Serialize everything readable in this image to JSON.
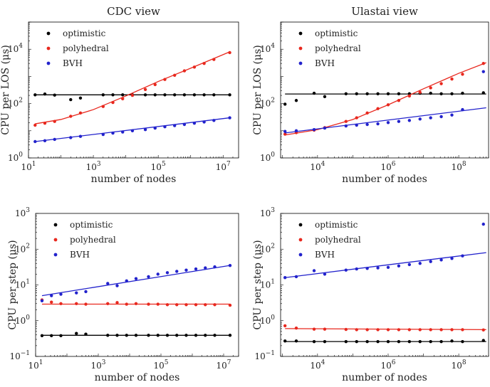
{
  "colors": {
    "optimistic": "#000000",
    "polyhedral": "#e8281e",
    "BVH": "#2222cc"
  },
  "chart_data": [
    {
      "type": "scatter",
      "title": "CDC view",
      "xlabel": "number of nodes",
      "ylabel": "CPU per LOS (μs)",
      "xscale": "log",
      "yscale": "log",
      "xlim": [
        10,
        30000000
      ],
      "ylim": [
        1,
        100000
      ],
      "xticks": [
        {
          "v": 10,
          "b": "10",
          "e": "1"
        },
        {
          "v": 1000,
          "b": "10",
          "e": "3"
        },
        {
          "v": 100000,
          "b": "10",
          "e": "5"
        },
        {
          "v": 10000000,
          "b": "10",
          "e": "7"
        }
      ],
      "yticks": [
        {
          "v": 1,
          "b": "10",
          "e": "0"
        },
        {
          "v": 100,
          "b": "10",
          "e": "2"
        },
        {
          "v": 10000,
          "b": "10",
          "e": "4"
        }
      ],
      "legend": "top-left",
      "series": [
        {
          "name": "optimistic",
          "color_key": "optimistic",
          "x": [
            16,
            32,
            64,
            200,
            400,
            2000,
            4000,
            8000,
            16000,
            40000,
            80000,
            160000,
            320000,
            640000,
            1300000,
            2600000,
            5200000,
            16000000
          ],
          "y": [
            210,
            225,
            205,
            140,
            160,
            210,
            210,
            210,
            210,
            210,
            210,
            210,
            210,
            210,
            210,
            210,
            210,
            210
          ],
          "fit": [
            [
              16,
              210
            ],
            [
              16000000,
              210
            ]
          ]
        },
        {
          "name": "polyhedral",
          "color_key": "polyhedral",
          "x": [
            16,
            32,
            64,
            200,
            400,
            2000,
            4000,
            8000,
            16000,
            40000,
            80000,
            160000,
            320000,
            640000,
            1300000,
            2600000,
            5200000,
            16000000
          ],
          "y": [
            16,
            19,
            22,
            34,
            45,
            78,
            110,
            150,
            200,
            330,
            500,
            770,
            1100,
            1600,
            2200,
            3000,
            4200,
            7500
          ],
          "fit": [
            [
              16,
              18
            ],
            [
              100,
              26
            ],
            [
              1000,
              60
            ],
            [
              10000,
              190
            ],
            [
              100000,
              650
            ],
            [
              1000000,
              2000
            ],
            [
              16000000,
              8000
            ]
          ]
        },
        {
          "name": "BVH",
          "color_key": "BVH",
          "x": [
            16,
            32,
            64,
            200,
            400,
            2000,
            4000,
            8000,
            16000,
            40000,
            80000,
            160000,
            320000,
            640000,
            1300000,
            2600000,
            5200000,
            16000000
          ],
          "y": [
            4,
            4.3,
            4.8,
            5.6,
            6.2,
            7.3,
            8.2,
            9,
            10,
            11,
            12.5,
            14,
            15.5,
            17,
            19,
            21,
            24,
            30
          ],
          "fit": [
            [
              16,
              4
            ],
            [
              16000000,
              30
            ]
          ]
        }
      ]
    },
    {
      "type": "scatter",
      "title": "Ulastai view",
      "xlabel": "number of nodes",
      "ylabel": "CPU per LOS (μs)",
      "xscale": "log",
      "yscale": "log",
      "xlim": [
        900,
        700000000
      ],
      "ylim": [
        1,
        100000
      ],
      "xticks": [
        {
          "v": 10000,
          "b": "10",
          "e": "4"
        },
        {
          "v": 1000000,
          "b": "10",
          "e": "6"
        },
        {
          "v": 100000000,
          "b": "10",
          "e": "8"
        }
      ],
      "yticks": [
        {
          "v": 1,
          "b": "10",
          "e": "0"
        },
        {
          "v": 100,
          "b": "10",
          "e": "2"
        },
        {
          "v": 10000,
          "b": "10",
          "e": "4"
        }
      ],
      "legend": "top-left",
      "series": [
        {
          "name": "optimistic",
          "color_key": "optimistic",
          "x": [
            1200,
            2500,
            8000,
            16000,
            64000,
            128000,
            256000,
            512000,
            1000000,
            2000000,
            4000000,
            8000000,
            16000000,
            32000000,
            64000000,
            128000000,
            500000000
          ],
          "y": [
            95,
            130,
            240,
            180,
            230,
            230,
            230,
            230,
            230,
            230,
            230,
            240,
            240,
            230,
            230,
            240,
            250
          ],
          "fit": [
            [
              1200,
              225
            ],
            [
              600000000,
              225
            ]
          ]
        },
        {
          "name": "polyhedral",
          "color_key": "polyhedral",
          "x": [
            1200,
            2500,
            8000,
            16000,
            64000,
            128000,
            256000,
            512000,
            1000000,
            2000000,
            4000000,
            8000000,
            16000000,
            32000000,
            64000000,
            128000000,
            500000000
          ],
          "y": [
            7.5,
            8.5,
            10.5,
            13,
            22,
            30,
            45,
            65,
            90,
            130,
            190,
            260,
            380,
            540,
            800,
            1200,
            3000
          ],
          "fit": [
            [
              1200,
              7
            ],
            [
              10000,
              11
            ],
            [
              100000,
              26
            ],
            [
              1000000,
              90
            ],
            [
              10000000,
              350
            ],
            [
              100000000,
              1300
            ],
            [
              600000000,
              3200
            ]
          ]
        },
        {
          "name": "BVH",
          "color_key": "BVH",
          "x": [
            1200,
            2500,
            8000,
            16000,
            64000,
            128000,
            256000,
            512000,
            1000000,
            2000000,
            4000000,
            8000000,
            16000000,
            32000000,
            64000000,
            128000000,
            500000000
          ],
          "y": [
            9.5,
            10,
            11,
            12.5,
            15,
            16,
            17,
            18,
            20,
            22,
            24,
            27,
            30,
            33,
            38,
            60,
            1500
          ],
          "fit": [
            [
              1200,
              8.3
            ],
            [
              600000000,
              70
            ]
          ]
        }
      ]
    },
    {
      "type": "scatter",
      "title": "",
      "xlabel": "number of nodes",
      "ylabel": "CPU per step (μs)",
      "xscale": "log",
      "yscale": "log",
      "xlim": [
        10,
        30000000
      ],
      "ylim": [
        0.1,
        1000
      ],
      "xticks": [
        {
          "v": 10,
          "b": "10",
          "e": "1"
        },
        {
          "v": 1000,
          "b": "10",
          "e": "3"
        },
        {
          "v": 100000,
          "b": "10",
          "e": "5"
        },
        {
          "v": 10000000,
          "b": "10",
          "e": "7"
        }
      ],
      "yticks": [
        {
          "v": 0.1,
          "b": "10",
          "e": "−1"
        },
        {
          "v": 1,
          "b": "10",
          "e": "0"
        },
        {
          "v": 10,
          "b": "10",
          "e": "1"
        },
        {
          "v": 100,
          "b": "10",
          "e": "2"
        },
        {
          "v": 1000,
          "b": "10",
          "e": "3"
        }
      ],
      "legend": "top-left",
      "series": [
        {
          "name": "optimistic",
          "color_key": "optimistic",
          "x": [
            16,
            32,
            64,
            200,
            400,
            2000,
            4000,
            8000,
            16000,
            40000,
            80000,
            160000,
            320000,
            640000,
            1300000,
            2600000,
            5200000,
            16000000
          ],
          "y": [
            0.38,
            0.38,
            0.38,
            0.44,
            0.42,
            0.39,
            0.39,
            0.39,
            0.39,
            0.39,
            0.39,
            0.39,
            0.39,
            0.39,
            0.39,
            0.39,
            0.39,
            0.39
          ],
          "fit": [
            [
              16,
              0.39
            ],
            [
              16000000,
              0.39
            ]
          ]
        },
        {
          "name": "polyhedral",
          "color_key": "polyhedral",
          "x": [
            16,
            32,
            64,
            200,
            400,
            2000,
            4000,
            8000,
            16000,
            40000,
            80000,
            160000,
            320000,
            640000,
            1300000,
            2600000,
            5200000,
            16000000
          ],
          "y": [
            3.8,
            3.3,
            3.0,
            3.0,
            2.9,
            3.0,
            3.2,
            2.9,
            3.0,
            2.9,
            2.9,
            2.8,
            2.8,
            2.8,
            2.8,
            2.8,
            2.8,
            2.7
          ],
          "fit": [
            [
              16,
              2.9
            ],
            [
              16000000,
              2.9
            ]
          ]
        },
        {
          "name": "BVH",
          "color_key": "BVH",
          "x": [
            16,
            32,
            64,
            200,
            400,
            2000,
            4000,
            8000,
            16000,
            40000,
            80000,
            160000,
            320000,
            640000,
            1300000,
            2600000,
            5200000,
            16000000
          ],
          "y": [
            3.6,
            5,
            5.5,
            6,
            6.5,
            11,
            9.5,
            13,
            15,
            17,
            20,
            22,
            24,
            26,
            28,
            30,
            32,
            35
          ],
          "fit": [
            [
              16,
              5
            ],
            [
              16000000,
              35
            ]
          ]
        }
      ]
    },
    {
      "type": "scatter",
      "title": "",
      "xlabel": "number of nodes",
      "ylabel": "CPU per step (μs)",
      "xscale": "log",
      "yscale": "log",
      "xlim": [
        900,
        700000000
      ],
      "ylim": [
        0.1,
        1000
      ],
      "xticks": [
        {
          "v": 10000,
          "b": "10",
          "e": "4"
        },
        {
          "v": 1000000,
          "b": "10",
          "e": "6"
        },
        {
          "v": 100000000,
          "b": "10",
          "e": "8"
        }
      ],
      "yticks": [
        {
          "v": 0.1,
          "b": "10",
          "e": "−1"
        },
        {
          "v": 1,
          "b": "10",
          "e": "0"
        },
        {
          "v": 10,
          "b": "10",
          "e": "1"
        },
        {
          "v": 100,
          "b": "10",
          "e": "2"
        },
        {
          "v": 1000,
          "b": "10",
          "e": "3"
        }
      ],
      "legend": "top-left",
      "series": [
        {
          "name": "optimistic",
          "color_key": "optimistic",
          "x": [
            1200,
            2500,
            8000,
            16000,
            64000,
            128000,
            256000,
            512000,
            1000000,
            2000000,
            4000000,
            8000000,
            16000000,
            32000000,
            64000000,
            128000000,
            500000000
          ],
          "y": [
            0.27,
            0.27,
            0.26,
            0.26,
            0.26,
            0.26,
            0.26,
            0.26,
            0.26,
            0.26,
            0.26,
            0.26,
            0.26,
            0.26,
            0.27,
            0.26,
            0.28
          ],
          "fit": [
            [
              1200,
              0.26
            ],
            [
              600000000,
              0.26
            ]
          ]
        },
        {
          "name": "polyhedral",
          "color_key": "polyhedral",
          "x": [
            1200,
            2500,
            8000,
            16000,
            64000,
            128000,
            256000,
            512000,
            1000000,
            2000000,
            4000000,
            8000000,
            16000000,
            32000000,
            64000000,
            128000000,
            500000000
          ],
          "y": [
            0.72,
            0.62,
            0.58,
            0.58,
            0.57,
            0.56,
            0.56,
            0.56,
            0.56,
            0.56,
            0.56,
            0.56,
            0.56,
            0.56,
            0.56,
            0.56,
            0.55
          ],
          "fit": [
            [
              1200,
              0.6
            ],
            [
              600000000,
              0.56
            ]
          ]
        },
        {
          "name": "BVH",
          "color_key": "BVH",
          "x": [
            1200,
            2500,
            8000,
            16000,
            64000,
            128000,
            256000,
            512000,
            1000000,
            2000000,
            4000000,
            8000000,
            16000000,
            32000000,
            64000000,
            128000000,
            500000000
          ],
          "y": [
            16,
            17,
            25,
            20,
            26,
            28,
            29,
            30,
            31,
            34,
            37,
            40,
            45,
            50,
            55,
            65,
            500
          ],
          "fit": [
            [
              1200,
              16
            ],
            [
              600000000,
              80
            ]
          ]
        }
      ]
    }
  ]
}
